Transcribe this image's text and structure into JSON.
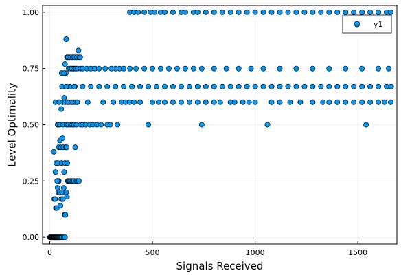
{
  "chart_data": {
    "type": "scatter",
    "xlabel": "Signals Received",
    "ylabel": "Level Optimality",
    "xlim": [
      -35,
      1690
    ],
    "ylim": [
      -0.03,
      1.03
    ],
    "x_ticks": [
      0,
      500,
      1000,
      1500
    ],
    "x_tick_labels": [
      "0",
      "500",
      "1000",
      "1500"
    ],
    "y_ticks": [
      0.0,
      0.25,
      0.5,
      0.75,
      1.0
    ],
    "y_tick_labels": [
      "0.00",
      "0.25",
      "0.50",
      "0.75",
      "1.00"
    ],
    "grid": true,
    "legend_position": "top-right",
    "series": [
      {
        "name": "y1",
        "color": "#009af9",
        "points": [
          [
            1,
            0
          ],
          [
            3,
            0
          ],
          [
            5,
            0
          ],
          [
            7,
            0
          ],
          [
            9,
            0
          ],
          [
            11,
            0
          ],
          [
            13,
            0
          ],
          [
            15,
            0
          ],
          [
            17,
            0
          ],
          [
            19,
            0
          ],
          [
            21,
            0
          ],
          [
            23,
            0
          ],
          [
            25,
            0
          ],
          [
            27,
            0
          ],
          [
            29,
            0
          ],
          [
            31,
            0
          ],
          [
            33,
            0
          ],
          [
            35,
            0
          ],
          [
            37,
            0
          ],
          [
            40,
            0
          ],
          [
            43,
            0
          ],
          [
            46,
            0
          ],
          [
            49,
            0
          ],
          [
            52,
            0
          ],
          [
            55,
            0
          ],
          [
            58,
            0
          ],
          [
            62,
            0
          ],
          [
            68,
            0
          ],
          [
            74,
            0
          ],
          [
            22,
            0.17
          ],
          [
            26,
            0.17
          ],
          [
            30,
            0.13
          ],
          [
            34,
            0.13
          ],
          [
            38,
            0.22
          ],
          [
            42,
            0.2
          ],
          [
            44,
            0.25
          ],
          [
            48,
            0.2
          ],
          [
            52,
            0.14
          ],
          [
            56,
            0.17
          ],
          [
            60,
            0.2
          ],
          [
            64,
            0.17
          ],
          [
            68,
            0.22
          ],
          [
            72,
            0.1
          ],
          [
            76,
            0.1
          ],
          [
            80,
            0.2
          ],
          [
            84,
            0.18
          ],
          [
            88,
            0.25
          ],
          [
            20,
            0.38
          ],
          [
            28,
            0.29
          ],
          [
            32,
            0.33
          ],
          [
            36,
            0.25
          ],
          [
            40,
            0.33
          ],
          [
            44,
            0.4
          ],
          [
            50,
            0.43
          ],
          [
            54,
            0.4
          ],
          [
            58,
            0.33
          ],
          [
            62,
            0.44
          ],
          [
            66,
            0.4
          ],
          [
            70,
            0.29
          ],
          [
            74,
            0.33
          ],
          [
            78,
            0.4
          ],
          [
            82,
            0.4
          ],
          [
            86,
            0.33
          ],
          [
            92,
            0.25
          ],
          [
            96,
            0.25
          ],
          [
            100,
            0.25
          ],
          [
            106,
            0.25
          ],
          [
            112,
            0.25
          ],
          [
            118,
            0.25
          ],
          [
            124,
            0.4
          ],
          [
            130,
            0.25
          ],
          [
            136,
            0.25
          ],
          [
            142,
            0.25
          ],
          [
            28,
            0.6
          ],
          [
            38,
            0.5
          ],
          [
            42,
            0.5
          ],
          [
            46,
            0.6
          ],
          [
            50,
            0.5
          ],
          [
            56,
            0.57
          ],
          [
            60,
            0.67
          ],
          [
            62,
            0.6
          ],
          [
            66,
            0.5
          ],
          [
            70,
            0.62
          ],
          [
            74,
            0.6
          ],
          [
            78,
            0.73
          ],
          [
            82,
            0.5
          ],
          [
            86,
            0.6
          ],
          [
            90,
            0.5
          ],
          [
            94,
            0.6
          ],
          [
            98,
            0.67
          ],
          [
            102,
            0.5
          ],
          [
            106,
            0.6
          ],
          [
            110,
            0.5
          ],
          [
            114,
            0.6
          ],
          [
            118,
            0.5
          ],
          [
            122,
            0.67
          ],
          [
            126,
            0.6
          ],
          [
            130,
            0.5
          ],
          [
            134,
            0.6
          ],
          [
            58,
            0.73
          ],
          [
            70,
            0.73
          ],
          [
            74,
            0.77
          ],
          [
            80,
            0.88
          ],
          [
            84,
            0.8
          ],
          [
            88,
            0.8
          ],
          [
            92,
            0.75
          ],
          [
            96,
            0.8
          ],
          [
            100,
            0.75
          ],
          [
            104,
            0.8
          ],
          [
            108,
            0.75
          ],
          [
            112,
            0.8
          ],
          [
            116,
            0.75
          ],
          [
            120,
            0.8
          ],
          [
            124,
            0.75
          ],
          [
            128,
            0.75
          ],
          [
            132,
            0.8
          ],
          [
            136,
            0.75
          ],
          [
            140,
            0.83
          ],
          [
            144,
            0.8
          ],
          [
            148,
            0.8
          ],
          [
            150,
            0.75
          ],
          [
            150,
            0.5
          ],
          [
            160,
            0.5
          ],
          [
            175,
            0.5
          ],
          [
            185,
            0.6
          ],
          [
            195,
            0.5
          ],
          [
            210,
            0.5
          ],
          [
            230,
            0.5
          ],
          [
            250,
            0.5
          ],
          [
            260,
            0.6
          ],
          [
            280,
            0.5
          ],
          [
            295,
            0.5
          ],
          [
            310,
            0.6
          ],
          [
            330,
            0.5
          ],
          [
            350,
            0.6
          ],
          [
            370,
            0.6
          ],
          [
            390,
            0.6
          ],
          [
            410,
            0.6
          ],
          [
            440,
            0.6
          ],
          [
            480,
            0.5
          ],
          [
            500,
            0.6
          ],
          [
            530,
            0.6
          ],
          [
            560,
            0.6
          ],
          [
            600,
            0.6
          ],
          [
            640,
            0.6
          ],
          [
            680,
            0.6
          ],
          [
            720,
            0.6
          ],
          [
            740,
            0.5
          ],
          [
            760,
            0.6
          ],
          [
            800,
            0.6
          ],
          [
            830,
            0.6
          ],
          [
            880,
            0.6
          ],
          [
            900,
            0.6
          ],
          [
            940,
            0.6
          ],
          [
            970,
            0.6
          ],
          [
            1000,
            0.6
          ],
          [
            1060,
            0.5
          ],
          [
            1080,
            0.6
          ],
          [
            1120,
            0.6
          ],
          [
            1170,
            0.6
          ],
          [
            1220,
            0.6
          ],
          [
            1280,
            0.6
          ],
          [
            1330,
            0.6
          ],
          [
            1360,
            0.6
          ],
          [
            1400,
            0.6
          ],
          [
            1440,
            0.6
          ],
          [
            1480,
            0.6
          ],
          [
            1520,
            0.6
          ],
          [
            1540,
            0.5
          ],
          [
            1560,
            0.6
          ],
          [
            1600,
            0.6
          ],
          [
            1630,
            0.6
          ],
          [
            1660,
            0.6
          ],
          [
            160,
            0.75
          ],
          [
            180,
            0.75
          ],
          [
            200,
            0.75
          ],
          [
            220,
            0.75
          ],
          [
            240,
            0.75
          ],
          [
            270,
            0.75
          ],
          [
            300,
            0.75
          ],
          [
            320,
            0.75
          ],
          [
            340,
            0.75
          ],
          [
            360,
            0.75
          ],
          [
            390,
            0.75
          ],
          [
            420,
            0.75
          ],
          [
            460,
            0.75
          ],
          [
            500,
            0.75
          ],
          [
            540,
            0.75
          ],
          [
            580,
            0.75
          ],
          [
            620,
            0.75
          ],
          [
            660,
            0.75
          ],
          [
            700,
            0.75
          ],
          [
            740,
            0.75
          ],
          [
            800,
            0.75
          ],
          [
            860,
            0.75
          ],
          [
            920,
            0.75
          ],
          [
            980,
            0.75
          ],
          [
            1040,
            0.75
          ],
          [
            1120,
            0.75
          ],
          [
            1200,
            0.75
          ],
          [
            1280,
            0.75
          ],
          [
            1360,
            0.75
          ],
          [
            1440,
            0.75
          ],
          [
            1520,
            0.75
          ],
          [
            1600,
            0.75
          ],
          [
            1650,
            0.75
          ],
          [
            390,
            1
          ],
          [
            410,
            1
          ],
          [
            430,
            1
          ],
          [
            460,
            1
          ],
          [
            490,
            1
          ],
          [
            510,
            1
          ],
          [
            540,
            1
          ],
          [
            560,
            1
          ],
          [
            600,
            1
          ],
          [
            640,
            1
          ],
          [
            660,
            1
          ],
          [
            700,
            1
          ],
          [
            720,
            1
          ],
          [
            760,
            1
          ],
          [
            800,
            1
          ],
          [
            840,
            1
          ],
          [
            880,
            1
          ],
          [
            920,
            1
          ],
          [
            960,
            1
          ],
          [
            1000,
            1
          ],
          [
            1040,
            1
          ],
          [
            1080,
            1
          ],
          [
            1120,
            1
          ],
          [
            1160,
            1
          ],
          [
            1200,
            1
          ],
          [
            1240,
            1
          ],
          [
            1280,
            1
          ],
          [
            1320,
            1
          ],
          [
            1360,
            1
          ],
          [
            1400,
            1
          ],
          [
            1440,
            1
          ],
          [
            1480,
            1
          ],
          [
            1520,
            1
          ],
          [
            1560,
            1
          ],
          [
            1600,
            1
          ],
          [
            1640,
            1
          ],
          [
            1660,
            1
          ],
          [
            80,
            0.67
          ],
          [
            120,
            0.67
          ],
          [
            160,
            0.67
          ],
          [
            200,
            0.67
          ],
          [
            240,
            0.67
          ],
          [
            280,
            0.67
          ],
          [
            320,
            0.67
          ],
          [
            360,
            0.67
          ],
          [
            400,
            0.67
          ],
          [
            440,
            0.67
          ],
          [
            480,
            0.67
          ],
          [
            520,
            0.67
          ],
          [
            560,
            0.67
          ],
          [
            600,
            0.67
          ],
          [
            640,
            0.67
          ],
          [
            680,
            0.67
          ],
          [
            720,
            0.67
          ],
          [
            760,
            0.67
          ],
          [
            800,
            0.67
          ],
          [
            840,
            0.67
          ],
          [
            880,
            0.67
          ],
          [
            920,
            0.67
          ],
          [
            960,
            0.67
          ],
          [
            1000,
            0.67
          ],
          [
            1040,
            0.67
          ],
          [
            1080,
            0.67
          ],
          [
            1120,
            0.67
          ],
          [
            1160,
            0.67
          ],
          [
            1200,
            0.67
          ],
          [
            1240,
            0.67
          ],
          [
            1280,
            0.67
          ],
          [
            1320,
            0.67
          ],
          [
            1360,
            0.67
          ],
          [
            1400,
            0.67
          ],
          [
            1440,
            0.67
          ],
          [
            1480,
            0.67
          ],
          [
            1520,
            0.67
          ],
          [
            1560,
            0.67
          ],
          [
            1600,
            0.67
          ],
          [
            1640,
            0.67
          ],
          [
            1662,
            0.67
          ]
        ]
      }
    ]
  }
}
